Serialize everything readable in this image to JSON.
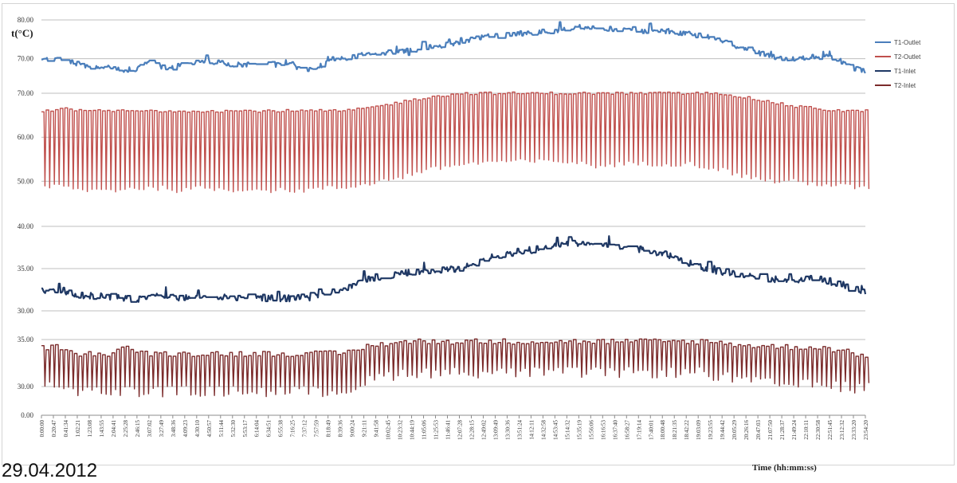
{
  "date_label": "29.04.2012",
  "chart_data": {
    "type": "line",
    "y_unit_label": "t(°C)",
    "xlabel": "Time  (hh:mm:ss)",
    "legend_position": "right",
    "grid": true,
    "categories": [
      "0:00:00",
      "0:20:47",
      "0:41:34",
      "1:02:21",
      "1:23:08",
      "1:43:55",
      "2:04:41",
      "2:25:28",
      "2:46:15",
      "3:07:02",
      "3:27:49",
      "3:48:36",
      "4:09:23",
      "4:30:10",
      "4:50:57",
      "5:11:44",
      "5:32:30",
      "5:53:17",
      "6:14:04",
      "6:34:51",
      "6:55:38",
      "7:16:25",
      "7:37:12",
      "7:57:59",
      "8:18:49",
      "8:39:36",
      "9:00:24",
      "9:21:11",
      "9:41:58",
      "10:02:45",
      "10:23:32",
      "10:44:19",
      "11:05:06",
      "11:25:53",
      "11:46:41",
      "12:07:28",
      "12:28:15",
      "12:49:02",
      "13:09:49",
      "13:30:36",
      "13:51:24",
      "14:12:11",
      "14:32:58",
      "14:53:45",
      "15:14:32",
      "15:35:19",
      "15:56:06",
      "16:16:53",
      "16:37:40",
      "16:58:27",
      "17:19:14",
      "17:40:01",
      "18:00:48",
      "18:21:35",
      "18:42:22",
      "19:03:09",
      "19:23:55",
      "19:44:42",
      "20:05:29",
      "20:26:16",
      "20:47:03",
      "21:07:50",
      "21:28:37",
      "21:49:24",
      "22:10:11",
      "22:30:58",
      "22:51:45",
      "23:12:32",
      "23:33:20",
      "23:54:20"
    ],
    "panels": [
      {
        "series_index": 0,
        "ylim": [
          65,
          80
        ],
        "ticks": [
          "70.00",
          "80.00"
        ],
        "tick_values": [
          70,
          80
        ]
      },
      {
        "series_index": 1,
        "ylim": [
          45,
          72
        ],
        "ticks": [
          "50.00",
          "60.00",
          "70.00"
        ],
        "tick_values": [
          50,
          60,
          70
        ]
      },
      {
        "series_index": 2,
        "ylim": [
          30,
          40
        ],
        "ticks": [
          "30.00",
          "35.00",
          "40.00"
        ],
        "tick_values": [
          30,
          35,
          40
        ]
      },
      {
        "series_index": 3,
        "ylim": [
          0,
          35
        ],
        "ticks": [
          "0.00",
          "30.00",
          "35.00"
        ],
        "tick_values": [
          0,
          30,
          35
        ]
      }
    ],
    "series": [
      {
        "name": "T1-Outlet",
        "color": "#4a7ebb",
        "style": "noisy-band",
        "amplitude": 0.8,
        "values": [
          69.6,
          70.2,
          69.5,
          68.8,
          67.9,
          67.8,
          67.7,
          67.0,
          67.5,
          69.5,
          68.0,
          67.6,
          69.0,
          69.0,
          69.2,
          68.9,
          68.5,
          68.5,
          68.9,
          69.0,
          69.0,
          68.6,
          66.8,
          67.3,
          69.5,
          70.0,
          70.5,
          71.0,
          71.3,
          71.6,
          72.0,
          72.2,
          72.7,
          73.1,
          73.6,
          74.1,
          75.0,
          75.6,
          76.0,
          76.2,
          76.5,
          76.7,
          77.0,
          77.2,
          77.6,
          78.2,
          78.0,
          77.6,
          77.7,
          77.4,
          77.2,
          77.1,
          77.0,
          76.8,
          76.5,
          76.0,
          75.2,
          74.3,
          73.5,
          72.5,
          71.5,
          70.6,
          70.1,
          70.0,
          70.4,
          70.6,
          70.2,
          69.0,
          67.5,
          66.6
        ]
      },
      {
        "name": "T2-Outlet",
        "color": "#c0504d",
        "style": "oscillation",
        "low_values": [
          48.5,
          49,
          48.5,
          48,
          48,
          48,
          48,
          48.5,
          48.5,
          48.5,
          48.5,
          48,
          48,
          48.5,
          48.5,
          48,
          48,
          48.5,
          48,
          48,
          48,
          48,
          48,
          48.5,
          48.5,
          48.5,
          49,
          49.5,
          50,
          50.5,
          51,
          52,
          52.5,
          53,
          53.5,
          54,
          54,
          54.5,
          54.5,
          54.5,
          54.5,
          54.5,
          54.5,
          54.5,
          54.5,
          54,
          53.5,
          53.5,
          54,
          54,
          54,
          54,
          54,
          54,
          54,
          53.5,
          53,
          52.5,
          51.5,
          51,
          50.5,
          50,
          50,
          50,
          49.5,
          49.5,
          49,
          49,
          48.5,
          48.5
        ],
        "values": [
          66,
          66,
          67,
          66,
          66,
          66,
          66,
          66,
          66,
          66,
          66,
          66,
          66,
          66,
          66,
          66,
          66,
          66,
          66,
          66,
          66,
          66,
          66,
          66,
          66,
          66,
          66.2,
          66.5,
          67,
          67.5,
          68,
          68.5,
          69,
          69.5,
          69.5,
          70,
          70,
          70,
          70,
          70,
          70,
          70,
          70,
          70,
          70,
          70,
          70,
          70,
          70,
          70,
          70,
          70,
          70,
          70,
          70,
          70,
          70,
          70,
          69.5,
          69,
          68.5,
          68,
          67.5,
          67,
          66.8,
          66.5,
          66.2,
          66,
          66,
          66
        ]
      },
      {
        "name": "T1-Inlet",
        "color": "#1f3864",
        "style": "noisy-band",
        "amplitude": 0.5,
        "values": [
          32.3,
          32.5,
          32.2,
          31.9,
          31.8,
          31.8,
          31.6,
          31.4,
          31.4,
          31.5,
          31.8,
          31.6,
          31.5,
          31.5,
          31.6,
          31.6,
          31.6,
          31.6,
          31.6,
          31.5,
          31.5,
          31.5,
          31.6,
          31.8,
          32.0,
          32.5,
          33.0,
          33.5,
          34.0,
          34.2,
          34.5,
          34.6,
          34.7,
          34.8,
          34.9,
          35.0,
          35.5,
          36.0,
          36.5,
          36.8,
          37.0,
          37.2,
          37.4,
          37.6,
          37.8,
          38.0,
          38.0,
          37.8,
          37.6,
          37.4,
          37.2,
          37.0,
          36.8,
          36.4,
          35.8,
          35.2,
          34.8,
          34.6,
          34.5,
          34.3,
          34.0,
          33.8,
          33.6,
          33.6,
          33.8,
          33.8,
          33.5,
          33.0,
          32.5,
          32.3
        ]
      },
      {
        "name": "T2-Inlet",
        "color": "#7b2b2b",
        "style": "oscillation",
        "low_values": [
          30,
          30,
          30,
          29.5,
          29.5,
          29.5,
          29.5,
          29.5,
          29.5,
          29.5,
          29.5,
          29.5,
          29.5,
          29.5,
          29.5,
          29.5,
          29.5,
          29.5,
          29.5,
          29.5,
          29.5,
          29.5,
          29.5,
          29.5,
          29.5,
          29.5,
          30,
          30.5,
          31,
          31.2,
          31.5,
          31.5,
          31.5,
          31.5,
          31.5,
          31.5,
          31.5,
          31.5,
          31.5,
          31.5,
          31.5,
          31.5,
          31.5,
          31.5,
          31.5,
          31.5,
          31.5,
          31.5,
          31.5,
          31.5,
          31.5,
          31.5,
          31.5,
          31.5,
          31.5,
          31.5,
          31.2,
          31,
          30.8,
          30.6,
          30.4,
          30.3,
          30.2,
          30.2,
          30.2,
          30.2,
          30.1,
          30,
          29.8,
          29.8
        ],
        "values": [
          34.2,
          34.2,
          34.2,
          33.5,
          33.5,
          33.5,
          33.5,
          34.5,
          33.5,
          33.5,
          33.5,
          33.5,
          33.5,
          33.5,
          33.5,
          33.5,
          33.5,
          33.5,
          33.5,
          33.5,
          33.5,
          33.5,
          33.5,
          33.5,
          33.5,
          33.5,
          33.8,
          34.2,
          34.5,
          34.6,
          34.7,
          34.8,
          34.8,
          34.8,
          34.8,
          34.8,
          34.8,
          34.8,
          34.8,
          34.8,
          34.8,
          34.8,
          34.8,
          34.8,
          34.8,
          34.8,
          34.8,
          34.8,
          34.8,
          34.8,
          34.8,
          34.8,
          34.8,
          34.8,
          34.8,
          34.8,
          34.8,
          34.6,
          34.5,
          34.4,
          34.3,
          34.3,
          34.2,
          34.2,
          34.2,
          34.2,
          34.0,
          33.8,
          33.5,
          33.2
        ]
      }
    ]
  }
}
